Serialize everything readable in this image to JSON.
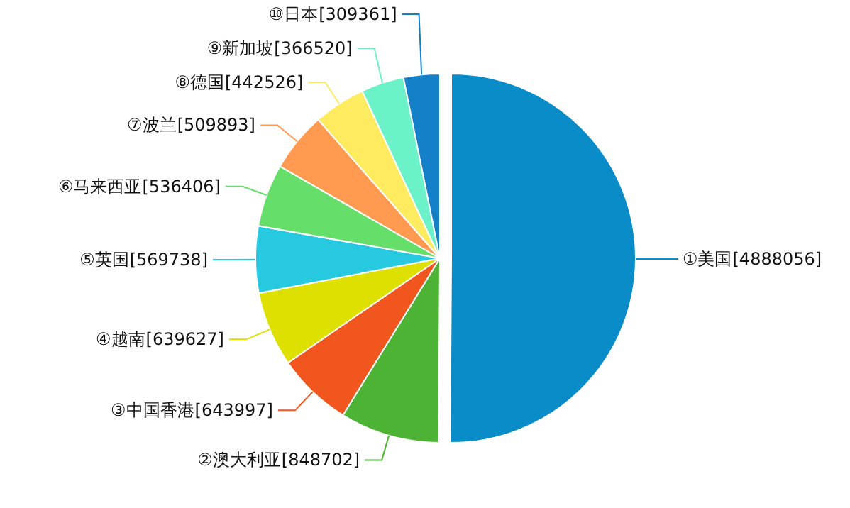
{
  "chart_data": {
    "type": "pie",
    "categories": [
      "①美国",
      "②澳大利亚",
      "③中国香港",
      "④越南",
      "⑤英国",
      "⑥马来西亚",
      "⑦波兰",
      "⑧德国",
      "⑨新加坡",
      "⑩日本"
    ],
    "values": [
      4888056,
      848702,
      643997,
      639627,
      569738,
      536406,
      509893,
      442526,
      366520,
      309361
    ],
    "value_labels": [
      "[4888056]",
      "[848702]",
      "[643997]",
      "[639627]",
      "[569738]",
      "[536406]",
      "[509893]",
      "[442526]",
      "[366520]",
      "[309361]"
    ],
    "colors": [
      "#0a8cc8",
      "#4db335",
      "#f0561d",
      "#dde000",
      "#27c9e0",
      "#66df6a",
      "#ff9a50",
      "#ffeb60",
      "#6cf2c8",
      "#1380c8"
    ]
  }
}
